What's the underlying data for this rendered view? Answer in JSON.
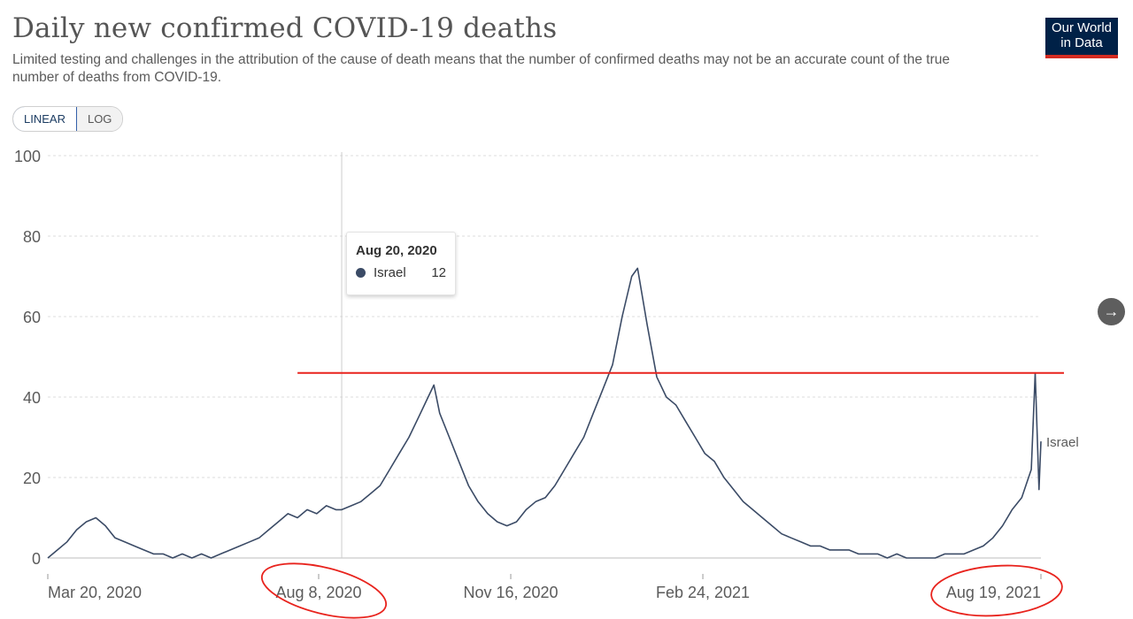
{
  "header": {
    "title": "Daily new confirmed COVID-19 deaths",
    "subtitle": "Limited testing and challenges in the attribution of the cause of death means that the number of confirmed deaths may not be an accurate count of the true number of deaths from COVID-19.",
    "logo_line1": "Our World",
    "logo_line2": "in Data"
  },
  "scale_toggle": {
    "linear_label": "LINEAR",
    "log_label": "LOG",
    "selected": "LINEAR"
  },
  "tooltip": {
    "date": "Aug 20, 2020",
    "series": "Israel",
    "value": "12"
  },
  "next_button": {
    "icon": "arrow-right-icon",
    "glyph": "→"
  },
  "colors": {
    "series": "#3b4b66",
    "annotation": "#e8231d",
    "grid": "#dddddd"
  },
  "chart_data": {
    "type": "line",
    "title": "Daily new confirmed COVID-19 deaths",
    "series_label": "Israel",
    "ylim": [
      0,
      100
    ],
    "yticks": [
      0,
      20,
      40,
      60,
      80,
      100
    ],
    "xlim": [
      "2020-03-20",
      "2021-08-19"
    ],
    "xticks": [
      {
        "date": "2020-03-20",
        "label": "Mar 20, 2020"
      },
      {
        "date": "2020-08-08",
        "label": "Aug 8, 2020"
      },
      {
        "date": "2020-11-16",
        "label": "Nov 16, 2020"
      },
      {
        "date": "2021-02-24",
        "label": "Feb 24, 2021"
      },
      {
        "date": "2021-08-19",
        "label": "Aug 19, 2021"
      }
    ],
    "grid": "horizontal dashed",
    "hover_date": "2020-08-20",
    "annotations": {
      "horizontal_line_value": 46,
      "horizontal_line_from": "2020-07-28",
      "circled_tick_labels": [
        "Aug 8, 2020",
        "Aug 19, 2021"
      ]
    },
    "series": [
      {
        "name": "Israel",
        "points": [
          [
            "2020-03-20",
            0
          ],
          [
            "2020-03-25",
            2
          ],
          [
            "2020-03-30",
            4
          ],
          [
            "2020-04-04",
            7
          ],
          [
            "2020-04-09",
            9
          ],
          [
            "2020-04-14",
            10
          ],
          [
            "2020-04-19",
            8
          ],
          [
            "2020-04-24",
            5
          ],
          [
            "2020-04-29",
            4
          ],
          [
            "2020-05-04",
            3
          ],
          [
            "2020-05-09",
            2
          ],
          [
            "2020-05-14",
            1
          ],
          [
            "2020-05-19",
            1
          ],
          [
            "2020-05-24",
            0
          ],
          [
            "2020-05-29",
            1
          ],
          [
            "2020-06-03",
            0
          ],
          [
            "2020-06-08",
            1
          ],
          [
            "2020-06-13",
            0
          ],
          [
            "2020-06-18",
            1
          ],
          [
            "2020-06-23",
            2
          ],
          [
            "2020-06-28",
            3
          ],
          [
            "2020-07-03",
            4
          ],
          [
            "2020-07-08",
            5
          ],
          [
            "2020-07-13",
            7
          ],
          [
            "2020-07-18",
            9
          ],
          [
            "2020-07-23",
            11
          ],
          [
            "2020-07-28",
            10
          ],
          [
            "2020-08-02",
            12
          ],
          [
            "2020-08-07",
            11
          ],
          [
            "2020-08-12",
            13
          ],
          [
            "2020-08-17",
            12
          ],
          [
            "2020-08-20",
            12
          ],
          [
            "2020-08-25",
            13
          ],
          [
            "2020-08-30",
            14
          ],
          [
            "2020-09-04",
            16
          ],
          [
            "2020-09-09",
            18
          ],
          [
            "2020-09-14",
            22
          ],
          [
            "2020-09-19",
            26
          ],
          [
            "2020-09-24",
            30
          ],
          [
            "2020-09-29",
            35
          ],
          [
            "2020-10-04",
            40
          ],
          [
            "2020-10-07",
            43
          ],
          [
            "2020-10-10",
            36
          ],
          [
            "2020-10-15",
            30
          ],
          [
            "2020-10-20",
            24
          ],
          [
            "2020-10-25",
            18
          ],
          [
            "2020-10-30",
            14
          ],
          [
            "2020-11-04",
            11
          ],
          [
            "2020-11-09",
            9
          ],
          [
            "2020-11-14",
            8
          ],
          [
            "2020-11-19",
            9
          ],
          [
            "2020-11-24",
            12
          ],
          [
            "2020-11-29",
            14
          ],
          [
            "2020-12-04",
            15
          ],
          [
            "2020-12-09",
            18
          ],
          [
            "2020-12-14",
            22
          ],
          [
            "2020-12-19",
            26
          ],
          [
            "2020-12-24",
            30
          ],
          [
            "2020-12-29",
            36
          ],
          [
            "2021-01-03",
            42
          ],
          [
            "2021-01-08",
            48
          ],
          [
            "2021-01-13",
            60
          ],
          [
            "2021-01-18",
            70
          ],
          [
            "2021-01-21",
            72
          ],
          [
            "2021-01-26",
            58
          ],
          [
            "2021-01-31",
            45
          ],
          [
            "2021-02-05",
            40
          ],
          [
            "2021-02-10",
            38
          ],
          [
            "2021-02-15",
            34
          ],
          [
            "2021-02-20",
            30
          ],
          [
            "2021-02-25",
            26
          ],
          [
            "2021-03-02",
            24
          ],
          [
            "2021-03-07",
            20
          ],
          [
            "2021-03-12",
            17
          ],
          [
            "2021-03-17",
            14
          ],
          [
            "2021-03-22",
            12
          ],
          [
            "2021-03-27",
            10
          ],
          [
            "2021-04-01",
            8
          ],
          [
            "2021-04-06",
            6
          ],
          [
            "2021-04-11",
            5
          ],
          [
            "2021-04-16",
            4
          ],
          [
            "2021-04-21",
            3
          ],
          [
            "2021-04-26",
            3
          ],
          [
            "2021-05-01",
            2
          ],
          [
            "2021-05-06",
            2
          ],
          [
            "2021-05-11",
            2
          ],
          [
            "2021-05-16",
            1
          ],
          [
            "2021-05-21",
            1
          ],
          [
            "2021-05-26",
            1
          ],
          [
            "2021-05-31",
            0
          ],
          [
            "2021-06-05",
            1
          ],
          [
            "2021-06-10",
            0
          ],
          [
            "2021-06-15",
            0
          ],
          [
            "2021-06-20",
            0
          ],
          [
            "2021-06-25",
            0
          ],
          [
            "2021-06-30",
            1
          ],
          [
            "2021-07-05",
            1
          ],
          [
            "2021-07-10",
            1
          ],
          [
            "2021-07-15",
            2
          ],
          [
            "2021-07-20",
            3
          ],
          [
            "2021-07-25",
            5
          ],
          [
            "2021-07-30",
            8
          ],
          [
            "2021-08-04",
            12
          ],
          [
            "2021-08-09",
            15
          ],
          [
            "2021-08-14",
            22
          ],
          [
            "2021-08-16",
            46
          ],
          [
            "2021-08-18",
            17
          ],
          [
            "2021-08-19",
            29
          ]
        ]
      }
    ]
  }
}
